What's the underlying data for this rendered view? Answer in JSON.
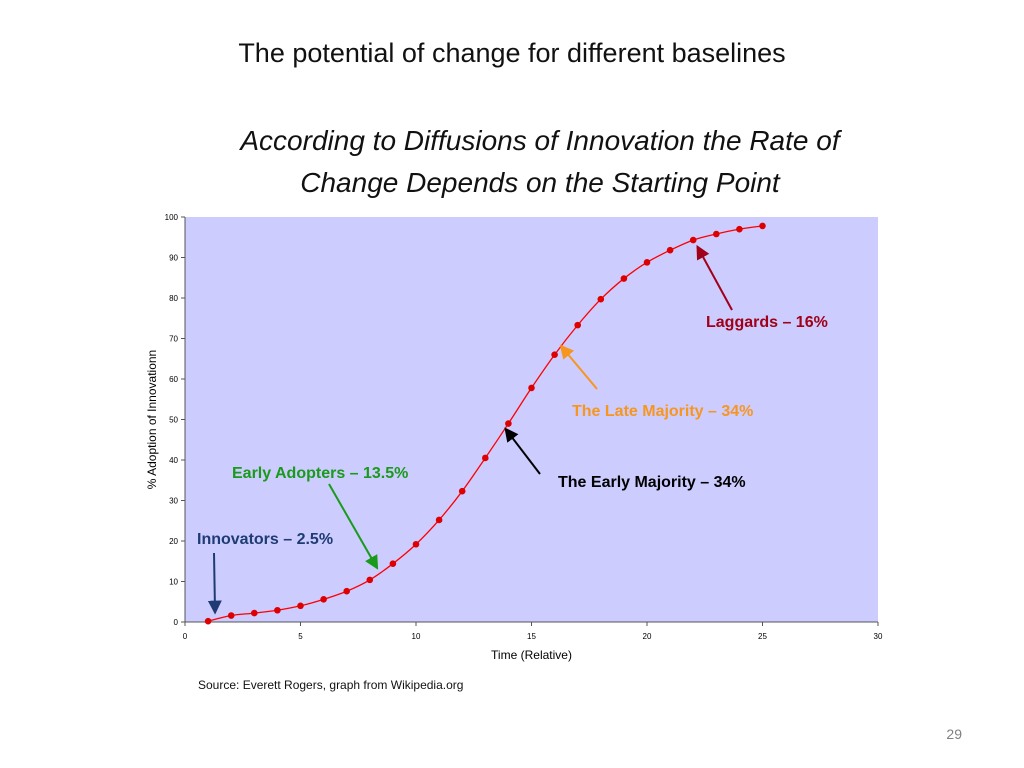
{
  "slide": {
    "title": "The potential of change for different baselines",
    "subtitle_line1": "According to Diffusions of Innovation the Rate of",
    "subtitle_line2": "Change Depends on the Starting Point",
    "source": "Source: Everett Rogers, graph from Wikipedia.org",
    "page_number": "29"
  },
  "colors": {
    "plot_background": "#ccccff",
    "curve": "#ff0000",
    "marker": "#dd0000",
    "innovators": "#1f3b73",
    "early_adopters": "#1a9a1a",
    "early_majority": "#000000",
    "late_majority": "#f7961e",
    "laggards": "#a00018"
  },
  "chart_data": {
    "type": "line",
    "xlabel": "Time (Relative)",
    "ylabel": "% Adoption of Innovationn",
    "xlim": [
      0,
      30
    ],
    "ylim": [
      0,
      100
    ],
    "xticks": [
      "0",
      "5",
      "10",
      "15",
      "20",
      "25",
      "30"
    ],
    "yticks": [
      "0",
      "10",
      "20",
      "30",
      "40",
      "50",
      "60",
      "70",
      "80",
      "90",
      "100"
    ],
    "grid": false,
    "series": [
      {
        "x": [
          1,
          2,
          3,
          4,
          5,
          6,
          7,
          8,
          9,
          10,
          11,
          12,
          13,
          14,
          15,
          16,
          17,
          18,
          19,
          20,
          21,
          22,
          23,
          24,
          25
        ],
        "y": [
          0.2,
          1.6,
          2.2,
          2.9,
          4.0,
          5.6,
          7.6,
          10.4,
          14.4,
          19.2,
          25.2,
          32.3,
          40.5,
          49.0,
          57.8,
          66.0,
          73.3,
          79.7,
          84.8,
          88.8,
          91.8,
          94.3,
          95.8,
          97.0,
          97.8
        ]
      }
    ],
    "annotations": [
      {
        "key": "innovators",
        "text": "Innovators – 2.5%",
        "target": [
          1.3,
          2.5
        ]
      },
      {
        "key": "early_adopters",
        "text": "Early Adopters – 13.5%",
        "target": [
          8.3,
          13.5
        ]
      },
      {
        "key": "early_majority",
        "text": "The Early Majority – 34%",
        "target": [
          13.9,
          47.5
        ]
      },
      {
        "key": "late_majority",
        "text": "The Late Majority – 34%",
        "target": [
          16.3,
          68
        ]
      },
      {
        "key": "laggards",
        "text": "Laggards – 16%",
        "target": [
          22.2,
          92.5
        ]
      }
    ]
  }
}
